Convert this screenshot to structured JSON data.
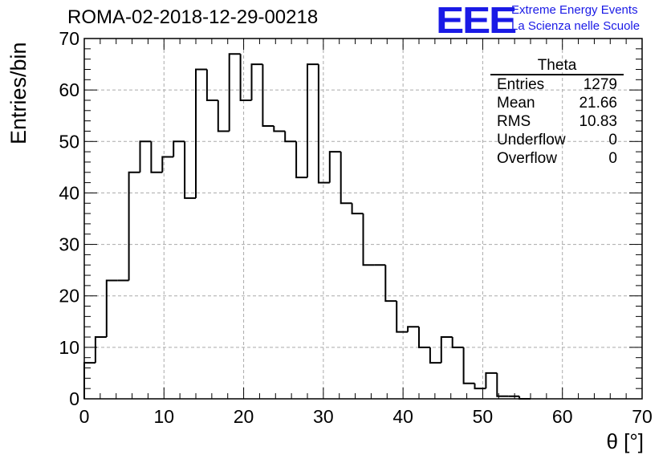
{
  "header": {
    "run_title": "ROMA-02-2018-12-29-00218",
    "logo_text": "EEE",
    "org_line1": "Extreme Energy Events",
    "org_line2": "La Scienza nelle Scuole",
    "logo_color": "#1a1ae6"
  },
  "stats_box": {
    "title": "Theta",
    "rows": [
      {
        "label": "Entries",
        "value": "1279"
      },
      {
        "label": "Mean",
        "value": "21.66"
      },
      {
        "label": "RMS",
        "value": "10.83"
      },
      {
        "label": "Underflow",
        "value": "0"
      },
      {
        "label": "Overflow",
        "value": "0"
      }
    ]
  },
  "chart_data": {
    "type": "histogram",
    "xlabel": "θ [°]",
    "ylabel": "Entries/bin",
    "xlim": [
      0,
      70
    ],
    "ylim": [
      0,
      70
    ],
    "x_ticks": [
      "0",
      "10",
      "20",
      "30",
      "40",
      "50",
      "60",
      "70"
    ],
    "y_ticks": [
      "0",
      "10",
      "20",
      "30",
      "40",
      "50",
      "60",
      "70"
    ],
    "grid": true,
    "bin_width": 1.4,
    "bin_start": 0,
    "values": [
      7,
      12,
      23,
      23,
      44,
      50,
      44,
      47,
      50,
      39,
      64,
      58,
      52,
      67,
      58,
      65,
      53,
      52,
      50,
      43,
      65,
      42,
      48,
      38,
      36,
      26,
      26,
      19,
      13,
      14,
      10,
      7,
      12,
      10,
      3,
      2,
      5,
      0.5,
      0.5,
      0,
      0,
      0,
      0,
      0,
      0,
      0,
      0,
      0,
      0,
      0
    ]
  }
}
